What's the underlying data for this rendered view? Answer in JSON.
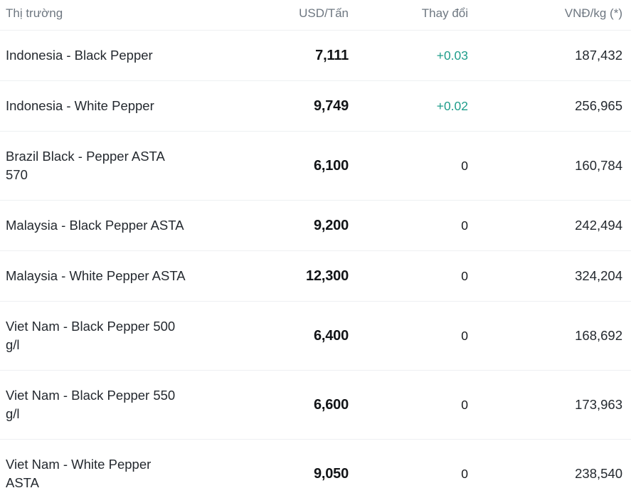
{
  "table": {
    "columns": [
      {
        "label": "Thị trường"
      },
      {
        "label": "USD/Tấn"
      },
      {
        "label": "Thay đổi"
      },
      {
        "label": "VNĐ/kg (*)"
      }
    ],
    "rows": [
      {
        "market": "Indonesia - Black Pepper",
        "usd": "7,111",
        "change": "+0.03",
        "vnd": "187,432"
      },
      {
        "market": "Indonesia - White Pepper",
        "usd": "9,749",
        "change": "+0.02",
        "vnd": "256,965"
      },
      {
        "market": "Brazil Black - Pepper ASTA\n570",
        "usd": "6,100",
        "change": "0",
        "vnd": "160,784"
      },
      {
        "market": "Malaysia - Black Pepper ASTA",
        "usd": "9,200",
        "change": "0",
        "vnd": "242,494"
      },
      {
        "market": "Malaysia - White Pepper ASTA",
        "usd": "12,300",
        "change": "0",
        "vnd": "324,204"
      },
      {
        "market": "Viet Nam - Black Pepper 500\ng/l",
        "usd": "6,400",
        "change": "0",
        "vnd": "168,692"
      },
      {
        "market": "Viet Nam - Black Pepper 550\ng/l",
        "usd": "6,600",
        "change": "0",
        "vnd": "173,963"
      },
      {
        "market": "Viet Nam - White Pepper\nASTA",
        "usd": "9,050",
        "change": "0",
        "vnd": "238,540"
      }
    ]
  },
  "colors": {
    "positive_change": "#1f9d8b",
    "body_text": "#24292f",
    "strong_text": "#121417",
    "header_text": "#6e7781",
    "divider": "#eef0f2",
    "background": "#ffffff"
  }
}
